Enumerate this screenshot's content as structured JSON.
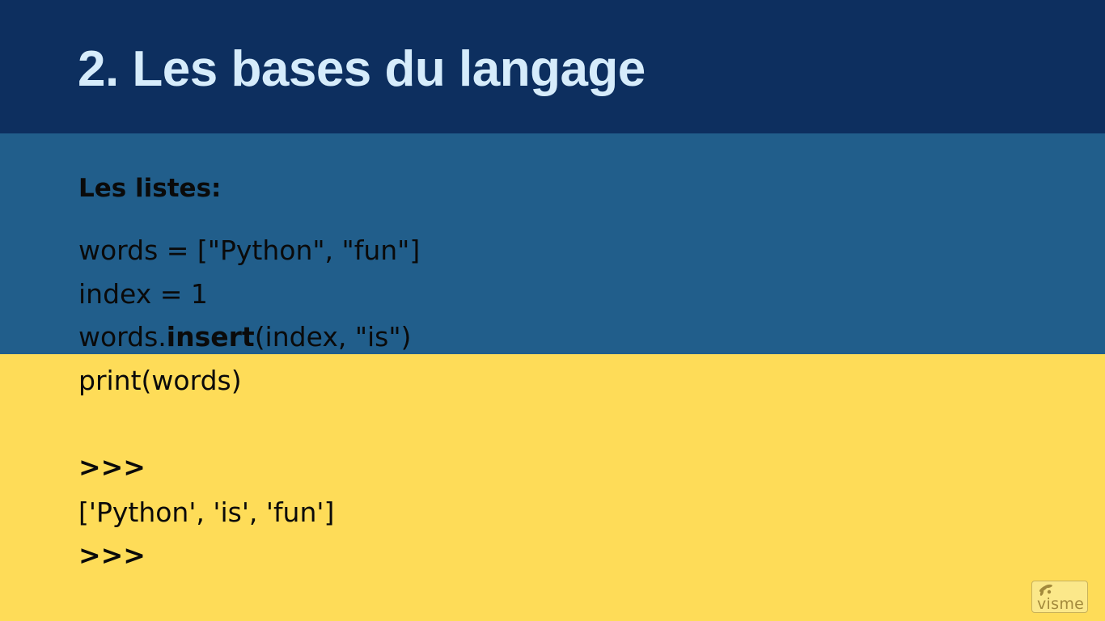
{
  "slide": {
    "title": "2. Les bases du langage",
    "subtitle": "Les listes:",
    "code": {
      "line1": "words = [\"Python\", \"fun\"]",
      "line2": "index = 1",
      "line3_prefix": "words.",
      "line3_bold": "insert",
      "line3_suffix": "(index, \"is\")",
      "line4": "print(words)",
      "prompt1": ">>>",
      "output": "['Python', 'is', 'fun']",
      "prompt2": ">>>"
    }
  },
  "logo": {
    "text": "visme",
    "icon": "visme-logo-icon"
  },
  "colors": {
    "header_band": "#0d2f5f",
    "middle_band": "#215e8b",
    "bottom_band": "#fedc58",
    "title_text": "#d6ecfb",
    "body_text": "#0a0a0a"
  }
}
